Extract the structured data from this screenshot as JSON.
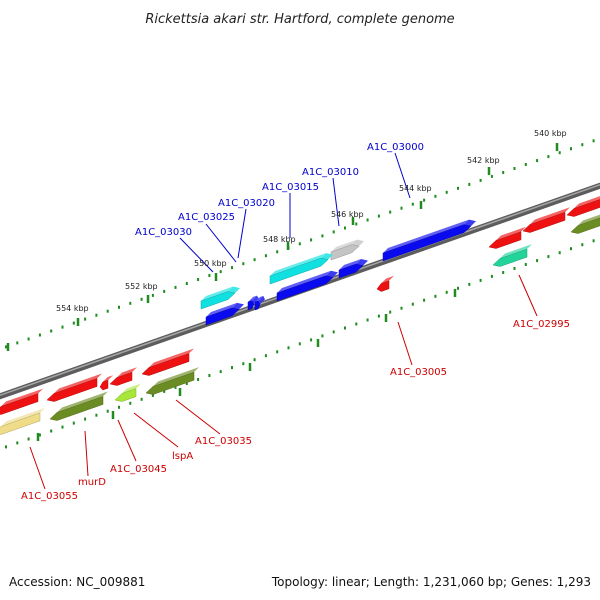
{
  "title": "Rickettsia akari str. Hartford, complete genome",
  "footer": {
    "accession": "Accession: NC_009881",
    "summary": "Topology: linear; Length: 1,231,060 bp; Genes: 1,293"
  },
  "scale_unit": "kbp",
  "tick_labels": [
    "540 kbp",
    "542 kbp",
    "544 kbp",
    "546 kbp",
    "548 kbp",
    "550 kbp",
    "552 kbp",
    "554 kbp"
  ],
  "gene_labels_forward": [
    "A1C_03000",
    "A1C_03010",
    "A1C_03015",
    "A1C_03020",
    "A1C_03025",
    "A1C_03030"
  ],
  "gene_labels_reverse": [
    "A1C_02995",
    "A1C_03005",
    "A1C_03035",
    "lspA",
    "A1C_03045",
    "murD",
    "A1C_03055"
  ],
  "colors": {
    "backbone": "#7a7a7a",
    "tick": "#1e8c1e",
    "forward_label": "#0000cc",
    "reverse_label": "#cc0000",
    "blue": "#0a0aee",
    "cyan": "#11e0e0",
    "grey": "#c4c4c4",
    "red": "#ee1111",
    "olive": "#6b8c22",
    "lime": "#a8e63a",
    "khaki": "#eedc88",
    "teal": "#22d49a"
  }
}
